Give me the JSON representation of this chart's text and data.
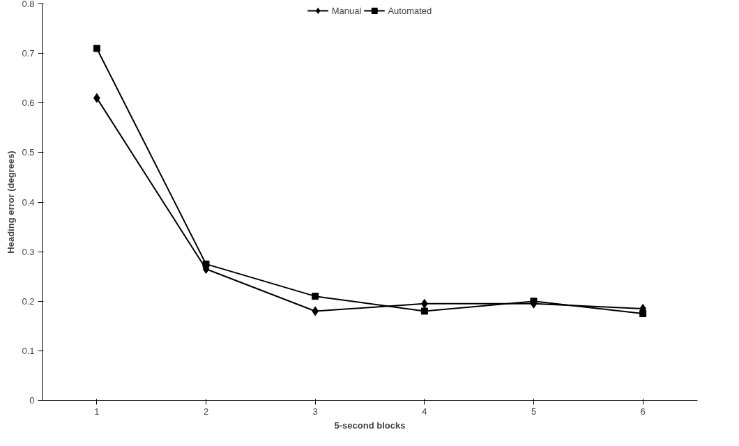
{
  "chart_data": {
    "type": "line",
    "xlabel": "5-second blocks",
    "ylabel": "Heading error (degrees)",
    "categories": [
      "1",
      "2",
      "3",
      "4",
      "5",
      "6"
    ],
    "series": [
      {
        "name": "Manual",
        "color": "#000000",
        "marker": "diamond",
        "values": [
          0.61,
          0.265,
          0.18,
          0.195,
          0.195,
          0.185
        ]
      },
      {
        "name": "Automated",
        "color": "#000000",
        "marker": "square",
        "values": [
          0.71,
          0.275,
          0.21,
          0.18,
          0.2,
          0.175
        ]
      }
    ],
    "ylim": [
      0,
      0.8
    ],
    "yticks": [
      {
        "value": 0,
        "label": "0"
      },
      0.1,
      0.2,
      0.3,
      0.4,
      0.5,
      0.6,
      0.7,
      0.8
    ],
    "grid": false,
    "legend": "top",
    "line_style": "solid"
  }
}
